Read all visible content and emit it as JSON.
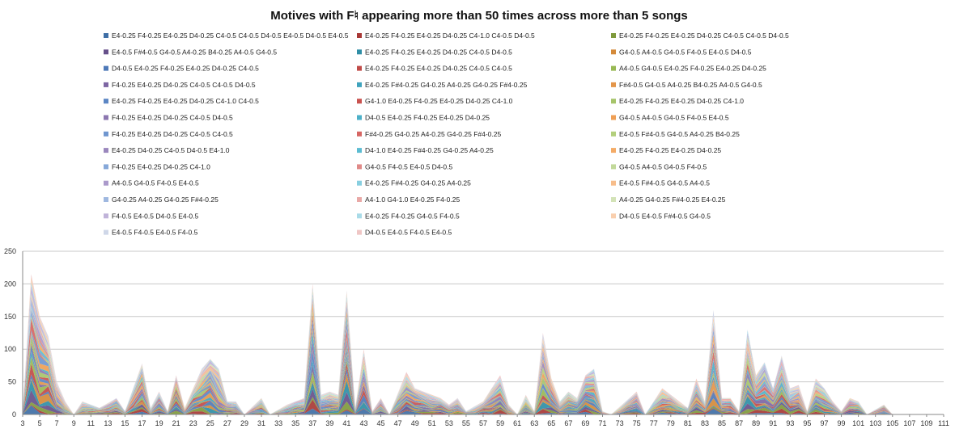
{
  "chart_data": {
    "type": "area",
    "stacked": true,
    "title": "Motives with F♮ appearing more than 50 times across more than 5 songs",
    "xlabel": "",
    "ylabel": "",
    "x_start": 3,
    "x_end": 111,
    "x_tick_labels": [
      "3",
      "5",
      "7",
      "9",
      "11",
      "13",
      "15",
      "17",
      "19",
      "21",
      "23",
      "25",
      "27",
      "29",
      "31",
      "33",
      "35",
      "37",
      "39",
      "41",
      "43",
      "45",
      "47",
      "49",
      "51",
      "53",
      "55",
      "57",
      "59",
      "61",
      "63",
      "65",
      "67",
      "69",
      "71",
      "73",
      "75",
      "77",
      "79",
      "81",
      "83",
      "85",
      "87",
      "89",
      "91",
      "93",
      "95",
      "97",
      "99",
      "101",
      "103",
      "105",
      "107",
      "109",
      "111"
    ],
    "y_ticks": [
      0,
      50,
      100,
      150,
      200,
      250
    ],
    "ylim": [
      0,
      250
    ],
    "grid": true,
    "legend_position": "top",
    "total_peaks": [
      {
        "x": 3,
        "y": 5
      },
      {
        "x": 4,
        "y": 215
      },
      {
        "x": 5,
        "y": 150
      },
      {
        "x": 6,
        "y": 120
      },
      {
        "x": 7,
        "y": 50
      },
      {
        "x": 8,
        "y": 20
      },
      {
        "x": 9,
        "y": 0
      },
      {
        "x": 10,
        "y": 20
      },
      {
        "x": 12,
        "y": 10
      },
      {
        "x": 14,
        "y": 25
      },
      {
        "x": 15,
        "y": 5
      },
      {
        "x": 17,
        "y": 78
      },
      {
        "x": 18,
        "y": 10
      },
      {
        "x": 19,
        "y": 35
      },
      {
        "x": 20,
        "y": 5
      },
      {
        "x": 21,
        "y": 60
      },
      {
        "x": 22,
        "y": 10
      },
      {
        "x": 24,
        "y": 70
      },
      {
        "x": 25,
        "y": 85
      },
      {
        "x": 26,
        "y": 70
      },
      {
        "x": 27,
        "y": 20
      },
      {
        "x": 28,
        "y": 20
      },
      {
        "x": 29,
        "y": 0
      },
      {
        "x": 31,
        "y": 25
      },
      {
        "x": 32,
        "y": 0
      },
      {
        "x": 34,
        "y": 15
      },
      {
        "x": 36,
        "y": 25
      },
      {
        "x": 37,
        "y": 200
      },
      {
        "x": 38,
        "y": 30
      },
      {
        "x": 39,
        "y": 35
      },
      {
        "x": 40,
        "y": 30
      },
      {
        "x": 41,
        "y": 190
      },
      {
        "x": 42,
        "y": 10
      },
      {
        "x": 43,
        "y": 100
      },
      {
        "x": 44,
        "y": 5
      },
      {
        "x": 45,
        "y": 25
      },
      {
        "x": 46,
        "y": 0
      },
      {
        "x": 48,
        "y": 65
      },
      {
        "x": 49,
        "y": 40
      },
      {
        "x": 50,
        "y": 35
      },
      {
        "x": 51,
        "y": 30
      },
      {
        "x": 52,
        "y": 25
      },
      {
        "x": 53,
        "y": 15
      },
      {
        "x": 54,
        "y": 25
      },
      {
        "x": 55,
        "y": 5
      },
      {
        "x": 57,
        "y": 20
      },
      {
        "x": 59,
        "y": 60
      },
      {
        "x": 60,
        "y": 15
      },
      {
        "x": 61,
        "y": 0
      },
      {
        "x": 62,
        "y": 30
      },
      {
        "x": 63,
        "y": 5
      },
      {
        "x": 64,
        "y": 125
      },
      {
        "x": 65,
        "y": 55
      },
      {
        "x": 66,
        "y": 20
      },
      {
        "x": 67,
        "y": 35
      },
      {
        "x": 68,
        "y": 25
      },
      {
        "x": 69,
        "y": 60
      },
      {
        "x": 70,
        "y": 70
      },
      {
        "x": 71,
        "y": 5
      },
      {
        "x": 72,
        "y": 0
      },
      {
        "x": 75,
        "y": 35
      },
      {
        "x": 76,
        "y": 0
      },
      {
        "x": 78,
        "y": 40
      },
      {
        "x": 79,
        "y": 30
      },
      {
        "x": 80,
        "y": 20
      },
      {
        "x": 81,
        "y": 10
      },
      {
        "x": 82,
        "y": 55
      },
      {
        "x": 83,
        "y": 20
      },
      {
        "x": 84,
        "y": 160
      },
      {
        "x": 85,
        "y": 25
      },
      {
        "x": 86,
        "y": 25
      },
      {
        "x": 87,
        "y": 5
      },
      {
        "x": 88,
        "y": 130
      },
      {
        "x": 89,
        "y": 60
      },
      {
        "x": 90,
        "y": 80
      },
      {
        "x": 91,
        "y": 40
      },
      {
        "x": 92,
        "y": 90
      },
      {
        "x": 93,
        "y": 40
      },
      {
        "x": 94,
        "y": 45
      },
      {
        "x": 95,
        "y": 5
      },
      {
        "x": 96,
        "y": 55
      },
      {
        "x": 97,
        "y": 40
      },
      {
        "x": 98,
        "y": 20
      },
      {
        "x": 99,
        "y": 5
      },
      {
        "x": 100,
        "y": 25
      },
      {
        "x": 101,
        "y": 20
      },
      {
        "x": 102,
        "y": 0
      },
      {
        "x": 104,
        "y": 15
      },
      {
        "x": 105,
        "y": 0
      },
      {
        "x": 111,
        "y": 0
      }
    ],
    "series": [
      {
        "name": "E4-0.25 F4-0.25 E4-0.25 D4-0.25 C4-0.5 C4-0.5 D4-0.5 E4-0.5 D4-0.5 E4-0.5",
        "color": "#3f6fa6"
      },
      {
        "name": "E4-0.25 F4-0.25 E4-0.25 D4-0.25 C4-1.0 C4-0.5 D4-0.5",
        "color": "#a83836"
      },
      {
        "name": "E4-0.25 F4-0.25 E4-0.25 D4-0.25 C4-0.5 C4-0.5 D4-0.5",
        "color": "#7f9a3c"
      },
      {
        "name": "E4-0.5 F#4-0.5 G4-0.5 A4-0.25 B4-0.25 A4-0.5 G4-0.5",
        "color": "#66508a"
      },
      {
        "name": "E4-0.25 F4-0.25 E4-0.25 D4-0.25 C4-0.5 D4-0.5",
        "color": "#2f8ea6"
      },
      {
        "name": "G4-0.5 A4-0.5 G4-0.5 F4-0.5 E4-0.5 D4-0.5",
        "color": "#d48a3a"
      },
      {
        "name": "D4-0.5 E4-0.25 F4-0.25 E4-0.25 D4-0.25 C4-0.5",
        "color": "#4e79b8"
      },
      {
        "name": "E4-0.25 F4-0.25 E4-0.25 D4-0.25 C4-0.5 C4-0.5",
        "color": "#c04b48"
      },
      {
        "name": "A4-0.5 G4-0.5 E4-0.25 F4-0.25 E4-0.25 D4-0.25",
        "color": "#98b954"
      },
      {
        "name": "F4-0.25 E4-0.25 D4-0.25 C4-0.5 C4-0.5 D4-0.5",
        "color": "#7d66a3"
      },
      {
        "name": "E4-0.25 F#4-0.25 G4-0.25 A4-0.25 G4-0.25 F#4-0.25",
        "color": "#3fa3bd"
      },
      {
        "name": "F#4-0.5 G4-0.5 A4-0.25 B4-0.25 A4-0.5 G4-0.5",
        "color": "#e3964a"
      },
      {
        "name": "E4-0.25 F4-0.25 E4-0.25 D4-0.25 C4-1.0 C4-0.5",
        "color": "#5b86c4"
      },
      {
        "name": "G4-1.0 E4-0.25 F4-0.25 E4-0.25 D4-0.25 C4-1.0",
        "color": "#c9524f"
      },
      {
        "name": "E4-0.25 F4-0.25 E4-0.25 D4-0.25 C4-1.0",
        "color": "#a6c46a"
      },
      {
        "name": "F4-0.25 E4-0.25 D4-0.25 C4-0.5 D4-0.5",
        "color": "#8c77b0"
      },
      {
        "name": "D4-0.5 E4-0.25 F4-0.25 E4-0.25 D4-0.25",
        "color": "#4cb0c8"
      },
      {
        "name": "G4-0.5 A4-0.5 G4-0.5 F4-0.5 E4-0.5",
        "color": "#ef9f55"
      },
      {
        "name": "F4-0.25 E4-0.25 D4-0.25 C4-0.5 C4-0.5",
        "color": "#6f96cf"
      },
      {
        "name": "F#4-0.25 G4-0.25 A4-0.25 G4-0.25 F#4-0.25",
        "color": "#d66663"
      },
      {
        "name": "E4-0.5 F#4-0.5 G4-0.5 A4-0.25 B4-0.25",
        "color": "#b3cf7c"
      },
      {
        "name": "E4-0.25 D4-0.25 C4-0.5 D4-0.5 E4-1.0",
        "color": "#9a87bd"
      },
      {
        "name": "D4-1.0 E4-0.25 F#4-0.25 G4-0.25 A4-0.25",
        "color": "#5cbcd2"
      },
      {
        "name": "E4-0.25 F4-0.25 E4-0.25 D4-0.25",
        "color": "#f4ab66"
      },
      {
        "name": "F4-0.25 E4-0.25 D4-0.25 C4-1.0",
        "color": "#86a8d9"
      },
      {
        "name": "G4-0.5 F4-0.5 E4-0.5 D4-0.5",
        "color": "#e08a88"
      },
      {
        "name": "G4-0.5 A4-0.5 G4-0.5 F4-0.5",
        "color": "#c2d99a"
      },
      {
        "name": "A4-0.5 G4-0.5 F4-0.5 E4-0.5",
        "color": "#ab9acb"
      },
      {
        "name": "E4-0.25 F#4-0.25 G4-0.25 A4-0.25",
        "color": "#88cfe0"
      },
      {
        "name": "E4-0.5 F#4-0.5 G4-0.5 A4-0.5",
        "color": "#f7bd8b"
      },
      {
        "name": "G4-0.25 A4-0.25 G4-0.25 F#4-0.25",
        "color": "#9fb8e0"
      },
      {
        "name": "A4-1.0 G4-1.0 E4-0.25 F4-0.25",
        "color": "#e9a9a7"
      },
      {
        "name": "A4-0.25 G4-0.25 F#4-0.25 E4-0.25",
        "color": "#d3e3b7"
      },
      {
        "name": "F4-0.5 E4-0.5 D4-0.5 E4-0.5",
        "color": "#c0b3d9"
      },
      {
        "name": "E4-0.25 F4-0.25 G4-0.5 F4-0.5",
        "color": "#a9dbe8"
      },
      {
        "name": "D4-0.5 E4-0.5 F#4-0.5 G4-0.5",
        "color": "#f9cfae"
      },
      {
        "name": "E4-0.5 F4-0.5 E4-0.5 F4-0.5",
        "color": "#cfd7e8"
      },
      {
        "name": "D4-0.5 E4-0.5 F4-0.5 E4-0.5",
        "color": "#efc6c5"
      }
    ]
  }
}
